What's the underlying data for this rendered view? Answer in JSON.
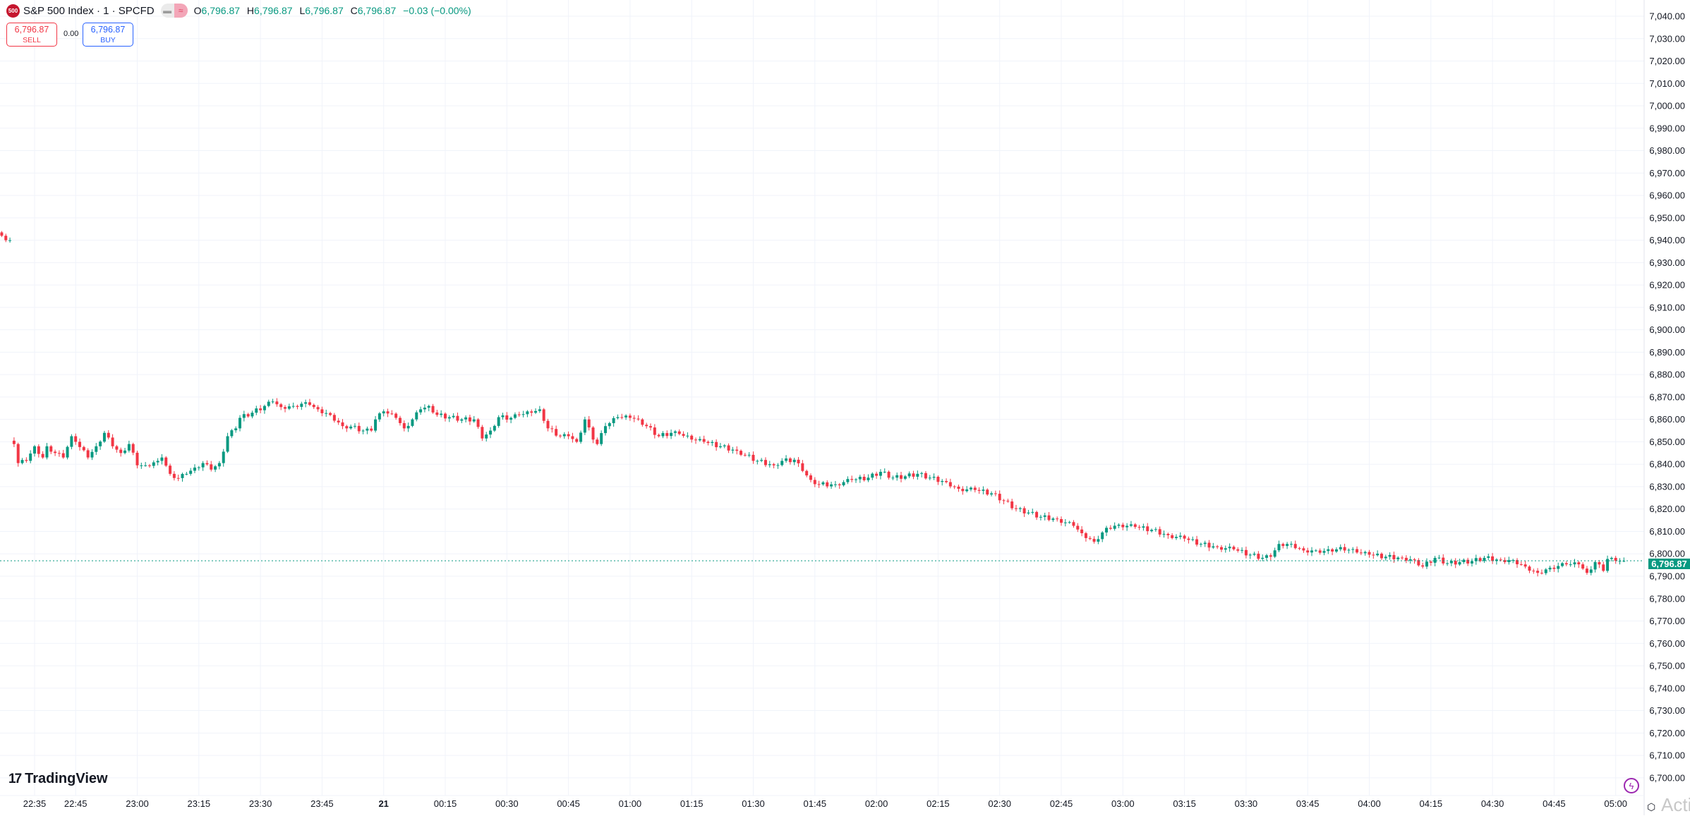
{
  "header": {
    "logo_text": "500",
    "title": "S&P 500 Index · 1 · SPCFD",
    "ohlc": {
      "o_label": "O",
      "o": "6,796.87",
      "h_label": "H",
      "h": "6,796.87",
      "l_label": "L",
      "l": "6,796.87",
      "c_label": "C",
      "c": "6,796.87",
      "change": "−0.03 (−0.00%)"
    }
  },
  "trade": {
    "sell_price": "6,796.87",
    "sell_label": "SELL",
    "spread": "0.00",
    "buy_price": "6,796.87",
    "buy_label": "BUY"
  },
  "branding": {
    "logo_text": "TradingView",
    "watermark": "Activ"
  },
  "icons": {
    "symbol_logo": "sp500-logo-icon",
    "market_status": "market-closed-icon",
    "lightning": "lightning-icon",
    "settings": "settings-icon"
  },
  "colors": {
    "up": "#089981",
    "down": "#f23645",
    "grid": "#f0f3fa",
    "last_price": "#089981"
  },
  "last_price_label": "6,796.87",
  "chart_data": {
    "type": "candlestick",
    "interval": "1 minute",
    "symbol": "S&P 500 Index",
    "last_price": 6796.87,
    "ylim": [
      6700,
      7040
    ],
    "y_ticks": [
      "7,040.00",
      "7,030.00",
      "7,020.00",
      "7,010.00",
      "7,000.00",
      "6,990.00",
      "6,980.00",
      "6,970.00",
      "6,960.00",
      "6,950.00",
      "6,940.00",
      "6,930.00",
      "6,920.00",
      "6,910.00",
      "6,900.00",
      "6,890.00",
      "6,880.00",
      "6,870.00",
      "6,860.00",
      "6,850.00",
      "6,840.00",
      "6,830.00",
      "6,820.00",
      "6,810.00",
      "6,800.00",
      "6,790.00",
      "6,780.00",
      "6,770.00",
      "6,760.00",
      "6,750.00",
      "6,740.00",
      "6,730.00",
      "6,720.00",
      "6,710.00",
      "6,700.00"
    ],
    "x_ticks": [
      {
        "label": "22:35",
        "time": "22:35"
      },
      {
        "label": "22:45",
        "time": "22:45"
      },
      {
        "label": "23:00",
        "time": "23:00"
      },
      {
        "label": "23:15",
        "time": "23:15"
      },
      {
        "label": "23:30",
        "time": "23:30"
      },
      {
        "label": "23:45",
        "time": "23:45"
      },
      {
        "label": "21",
        "time": "24:00"
      },
      {
        "label": "00:15",
        "time": "24:15"
      },
      {
        "label": "00:30",
        "time": "24:30"
      },
      {
        "label": "00:45",
        "time": "24:45"
      },
      {
        "label": "01:00",
        "time": "25:00"
      },
      {
        "label": "01:15",
        "time": "25:15"
      },
      {
        "label": "01:30",
        "time": "25:30"
      },
      {
        "label": "01:45",
        "time": "25:45"
      },
      {
        "label": "02:00",
        "time": "26:00"
      },
      {
        "label": "02:15",
        "time": "26:15"
      },
      {
        "label": "02:30",
        "time": "26:30"
      },
      {
        "label": "02:45",
        "time": "26:45"
      },
      {
        "label": "03:00",
        "time": "27:00"
      },
      {
        "label": "03:15",
        "time": "27:15"
      },
      {
        "label": "03:30",
        "time": "27:30"
      },
      {
        "label": "03:45",
        "time": "27:45"
      },
      {
        "label": "04:00",
        "time": "28:00"
      },
      {
        "label": "04:15",
        "time": "28:15"
      },
      {
        "label": "04:30",
        "time": "28:30"
      },
      {
        "label": "04:45",
        "time": "28:45"
      },
      {
        "label": "05:00",
        "time": "29:00"
      }
    ],
    "closes": [
      [
        "22:27",
        6942
      ],
      [
        "22:28",
        6940
      ],
      [
        "22:29",
        6940
      ],
      [
        "22:30",
        6849
      ],
      [
        "22:31",
        6840.5
      ],
      [
        "22:33",
        6841.5
      ],
      [
        "22:35",
        6848
      ],
      [
        "22:37",
        6843
      ],
      [
        "22:38",
        6848
      ],
      [
        "22:40",
        6845
      ],
      [
        "22:42",
        6843
      ],
      [
        "22:44",
        6852.5
      ],
      [
        "22:45",
        6850
      ],
      [
        "22:48",
        6843
      ],
      [
        "22:50",
        6848
      ],
      [
        "22:52",
        6854
      ],
      [
        "22:54",
        6848
      ],
      [
        "22:56",
        6845
      ],
      [
        "22:58",
        6849
      ],
      [
        "23:00",
        6839.5
      ],
      [
        "23:02",
        6839.5
      ],
      [
        "23:05",
        6841.5
      ],
      [
        "23:06",
        6843
      ],
      [
        "23:08",
        6835.7
      ],
      [
        "23:10",
        6833.8
      ],
      [
        "23:12",
        6835.7
      ],
      [
        "23:14",
        6838.5
      ],
      [
        "23:16",
        6840.5
      ],
      [
        "23:18",
        6837.6
      ],
      [
        "23:20",
        6840.5
      ],
      [
        "23:22",
        6852.5
      ],
      [
        "23:24",
        6856
      ],
      [
        "23:25",
        6860.7
      ],
      [
        "23:28",
        6863
      ],
      [
        "23:31",
        6866
      ],
      [
        "23:33",
        6868
      ],
      [
        "23:35",
        6865.5
      ],
      [
        "23:38",
        6866
      ],
      [
        "23:40",
        6867
      ],
      [
        "23:42",
        6866.5
      ],
      [
        "23:44",
        6864.5
      ],
      [
        "23:47",
        6862
      ],
      [
        "23:50",
        6857
      ],
      [
        "23:52",
        6856.8
      ],
      [
        "23:55",
        6855
      ],
      [
        "23:57",
        6855
      ],
      [
        "23:58",
        6860
      ],
      [
        "24:00",
        6863.6
      ],
      [
        "24:03",
        6860.7
      ],
      [
        "24:05",
        6856
      ],
      [
        "24:07",
        6860
      ],
      [
        "24:09",
        6864.5
      ],
      [
        "24:11",
        6866
      ],
      [
        "24:13",
        6862
      ],
      [
        "24:16",
        6861
      ],
      [
        "24:19",
        6860
      ],
      [
        "24:22",
        6860
      ],
      [
        "24:24",
        6851.5
      ],
      [
        "24:26",
        6855
      ],
      [
        "24:28",
        6861
      ],
      [
        "24:31",
        6860.7
      ],
      [
        "24:33",
        6862
      ],
      [
        "24:36",
        6863
      ],
      [
        "24:38",
        6864.5
      ],
      [
        "24:40",
        6856
      ],
      [
        "24:43",
        6852.5
      ],
      [
        "24:45",
        6852.5
      ],
      [
        "24:47",
        6850
      ],
      [
        "24:49",
        6860
      ],
      [
        "24:51",
        6851
      ],
      [
        "24:52",
        6849
      ],
      [
        "24:54",
        6857
      ],
      [
        "24:57",
        6861
      ],
      [
        "25:00",
        6860.7
      ],
      [
        "25:02",
        6860
      ],
      [
        "25:04",
        6857
      ],
      [
        "25:07",
        6852.5
      ],
      [
        "25:10",
        6854
      ],
      [
        "25:12",
        6853.5
      ],
      [
        "25:15",
        6851
      ],
      [
        "25:18",
        6850
      ],
      [
        "25:22",
        6848
      ],
      [
        "25:26",
        6846
      ],
      [
        "25:31",
        6841.5
      ],
      [
        "25:35",
        6839.5
      ],
      [
        "25:37",
        6841.5
      ],
      [
        "25:40",
        6842
      ],
      [
        "25:42",
        6837
      ],
      [
        "25:44",
        6833
      ],
      [
        "25:46",
        6831
      ],
      [
        "25:50",
        6831
      ],
      [
        "25:54",
        6833
      ],
      [
        "25:58",
        6834
      ],
      [
        "26:01",
        6836.6
      ],
      [
        "26:04",
        6834
      ],
      [
        "26:07",
        6834.6
      ],
      [
        "26:10",
        6835.7
      ],
      [
        "26:13",
        6834
      ],
      [
        "26:17",
        6832
      ],
      [
        "26:20",
        6829
      ],
      [
        "26:24",
        6828.5
      ],
      [
        "26:28",
        6827
      ],
      [
        "26:31",
        6823.7
      ],
      [
        "26:34",
        6820
      ],
      [
        "26:37",
        6818.4
      ],
      [
        "26:40",
        6816.5
      ],
      [
        "26:44",
        6815.5
      ],
      [
        "26:48",
        6812.5
      ],
      [
        "26:50",
        6809.2
      ],
      [
        "26:53",
        6805.4
      ],
      [
        "26:56",
        6811.6
      ],
      [
        "26:59",
        6813
      ],
      [
        "27:03",
        6812
      ],
      [
        "27:07",
        6810.7
      ],
      [
        "27:11",
        6808.3
      ],
      [
        "27:15",
        6806.8
      ],
      [
        "27:19",
        6804.4
      ],
      [
        "27:23",
        6803
      ],
      [
        "27:27",
        6802
      ],
      [
        "27:31",
        6799.6
      ],
      [
        "27:34",
        6798.2
      ],
      [
        "27:36",
        6798.7
      ],
      [
        "27:38",
        6804.4
      ],
      [
        "27:41",
        6804.4
      ],
      [
        "27:44",
        6801.5
      ],
      [
        "27:47",
        6801.5
      ],
      [
        "27:51",
        6801
      ],
      [
        "27:53",
        6803
      ],
      [
        "27:57",
        6800.6
      ],
      [
        "28:00",
        6799.6
      ],
      [
        "28:04",
        6798.7
      ],
      [
        "28:08",
        6798.2
      ],
      [
        "28:11",
        6797.2
      ],
      [
        "28:13",
        6794.3
      ],
      [
        "28:16",
        6798.2
      ],
      [
        "28:19",
        6795.8
      ],
      [
        "28:22",
        6796.3
      ],
      [
        "28:25",
        6796.7
      ],
      [
        "28:28",
        6798.2
      ],
      [
        "28:32",
        6797.2
      ],
      [
        "28:35",
        6797.2
      ],
      [
        "28:38",
        6794.3
      ],
      [
        "28:41",
        6791.5
      ],
      [
        "28:44",
        6793.8
      ],
      [
        "28:48",
        6795.3
      ],
      [
        "28:51",
        6795.3
      ],
      [
        "28:53",
        6791.5
      ],
      [
        "28:55",
        6796.3
      ],
      [
        "28:57",
        6792.4
      ],
      [
        "28:58",
        6797.7
      ],
      [
        "29:00",
        6796.87
      ],
      [
        "29:02",
        6796.87
      ]
    ]
  }
}
